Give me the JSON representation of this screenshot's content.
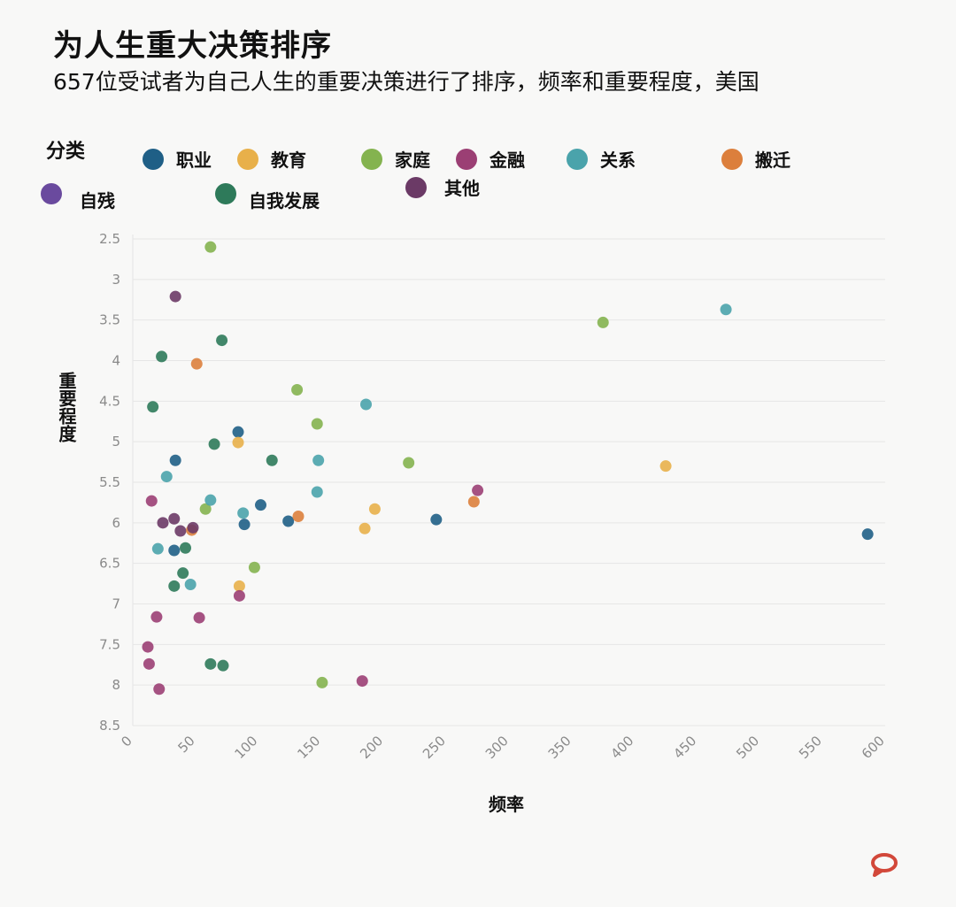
{
  "header": {
    "title": "为人生重大决策排序",
    "subtitle": "657位受试者为自己人生的重要决策进行了排序，频率和重要程度，美国"
  },
  "legend": {
    "title": "分类",
    "items": [
      {
        "label": "职业",
        "color": "#1f5f86"
      },
      {
        "label": "教育",
        "color": "#e8b04a"
      },
      {
        "label": "家庭",
        "color": "#84b34f"
      },
      {
        "label": "金融",
        "color": "#9b3f74"
      },
      {
        "label": "关系",
        "color": "#4aa3ab"
      },
      {
        "label": "搬迁",
        "color": "#dc7f3c"
      },
      {
        "label": "自残",
        "color": "#6a4a9e"
      },
      {
        "label": "自我发展",
        "color": "#2e7a5a"
      },
      {
        "label": "其他",
        "color": "#6b3a66"
      }
    ]
  },
  "chart_data": {
    "type": "scatter",
    "title": "为人生重大决策排序",
    "subtitle": "657位受试者为自己人生的重要决策进行了排序，频率和重要程度，美国",
    "xlabel": "频率",
    "ylabel": "重要程度",
    "xlim": [
      0,
      600
    ],
    "ylim": [
      2.5,
      8.5
    ],
    "y_inverted": true,
    "xticks": [
      "0",
      "50",
      "100",
      "150",
      "200",
      "250",
      "300",
      "350",
      "400",
      "450",
      "500",
      "550",
      "600"
    ],
    "yticks": [
      "2.5",
      "3",
      "3.5",
      "4",
      "4.5",
      "5",
      "5.5",
      "6",
      "6.5",
      "7",
      "7.5",
      "8",
      "8.5"
    ],
    "grid": "horizontal",
    "legend_position": "top",
    "series": [
      {
        "name": "职业",
        "points": [
          [
            84,
            4.88
          ],
          [
            34,
            5.23
          ],
          [
            242,
            5.96
          ],
          [
            89,
            6.02
          ],
          [
            102,
            5.78
          ],
          [
            124,
            5.98
          ],
          [
            33,
            6.34
          ],
          [
            586,
            6.14
          ]
        ]
      },
      {
        "name": "教育",
        "points": [
          [
            84,
            5.01
          ],
          [
            425,
            5.3
          ],
          [
            193,
            5.83
          ],
          [
            185,
            6.07
          ],
          [
            85,
            6.78
          ]
        ]
      },
      {
        "name": "家庭",
        "points": [
          [
            62,
            2.6
          ],
          [
            375,
            3.53
          ],
          [
            131,
            4.36
          ],
          [
            147,
            4.78
          ],
          [
            220,
            5.26
          ],
          [
            58,
            5.83
          ],
          [
            97,
            6.55
          ],
          [
            151,
            7.97
          ]
        ]
      },
      {
        "name": "金融",
        "points": [
          [
            275,
            5.6
          ],
          [
            15,
            5.73
          ],
          [
            19,
            7.16
          ],
          [
            53,
            7.17
          ],
          [
            85,
            6.9
          ],
          [
            12,
            7.53
          ],
          [
            13,
            7.74
          ],
          [
            21,
            8.05
          ],
          [
            183,
            7.95
          ]
        ]
      },
      {
        "name": "关系",
        "points": [
          [
            473,
            3.37
          ],
          [
            186,
            4.54
          ],
          [
            148,
            5.23
          ],
          [
            27,
            5.43
          ],
          [
            62,
            5.72
          ],
          [
            147,
            5.62
          ],
          [
            88,
            5.88
          ],
          [
            20,
            6.32
          ],
          [
            46,
            6.76
          ]
        ]
      },
      {
        "name": "搬迁",
        "points": [
          [
            51,
            4.04
          ],
          [
            132,
            5.92
          ],
          [
            272,
            5.74
          ],
          [
            47,
            6.09
          ]
        ]
      },
      {
        "name": "自残",
        "points": []
      },
      {
        "name": "自我发展",
        "points": [
          [
            71,
            3.75
          ],
          [
            23,
            3.95
          ],
          [
            16,
            4.57
          ],
          [
            65,
            5.03
          ],
          [
            111,
            5.23
          ],
          [
            42,
            6.31
          ],
          [
            40,
            6.62
          ],
          [
            33,
            6.78
          ],
          [
            62,
            7.74
          ],
          [
            72,
            7.76
          ]
        ]
      },
      {
        "name": "其他",
        "points": [
          [
            34,
            3.21
          ],
          [
            24,
            6.0
          ],
          [
            33,
            5.95
          ],
          [
            38,
            6.1
          ],
          [
            48,
            6.06
          ]
        ]
      }
    ]
  }
}
